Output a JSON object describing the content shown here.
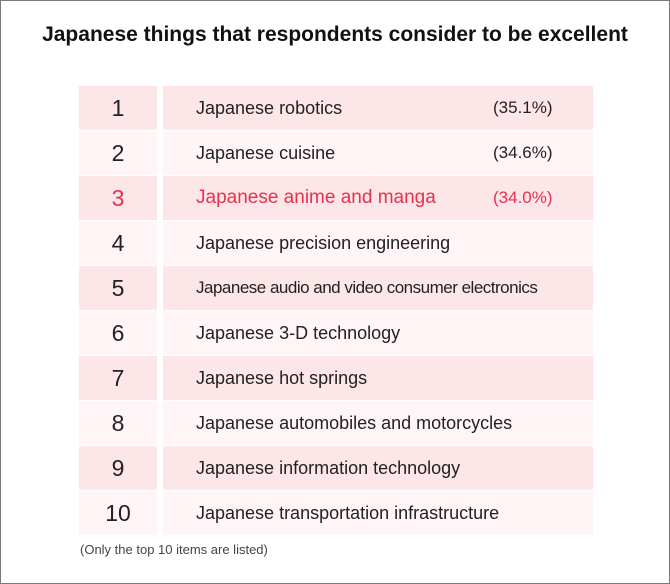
{
  "chart_data": {
    "type": "table",
    "title": "Japanese things that respondents consider to be excellent",
    "rows": [
      {
        "rank": "1",
        "item": "Japanese robotics",
        "percent": "(35.1%)",
        "value": 35.1
      },
      {
        "rank": "2",
        "item": "Japanese cuisine",
        "percent": "(34.6%)",
        "value": 34.6
      },
      {
        "rank": "3",
        "item": "Japanese anime and manga",
        "percent": "(34.0%)",
        "value": 34.0
      },
      {
        "rank": "4",
        "item": "Japanese precision engineering"
      },
      {
        "rank": "5",
        "item": "Japanese audio and video consumer electronics"
      },
      {
        "rank": "6",
        "item": "Japanese 3-D technology"
      },
      {
        "rank": "7",
        "item": "Japanese hot springs"
      },
      {
        "rank": "8",
        "item": "Japanese automobiles and motorcycles"
      },
      {
        "rank": "9",
        "item": "Japanese information technology"
      },
      {
        "rank": "10",
        "item": "Japanese transportation infrastructure"
      }
    ],
    "highlighted_rank": "3",
    "note": "(Only the top 10 items are listed)"
  },
  "colors": {
    "row_dark": "#fde6e8",
    "row_light": "#fff5f6",
    "highlight_text": "#e8304f",
    "text": "#222222"
  }
}
